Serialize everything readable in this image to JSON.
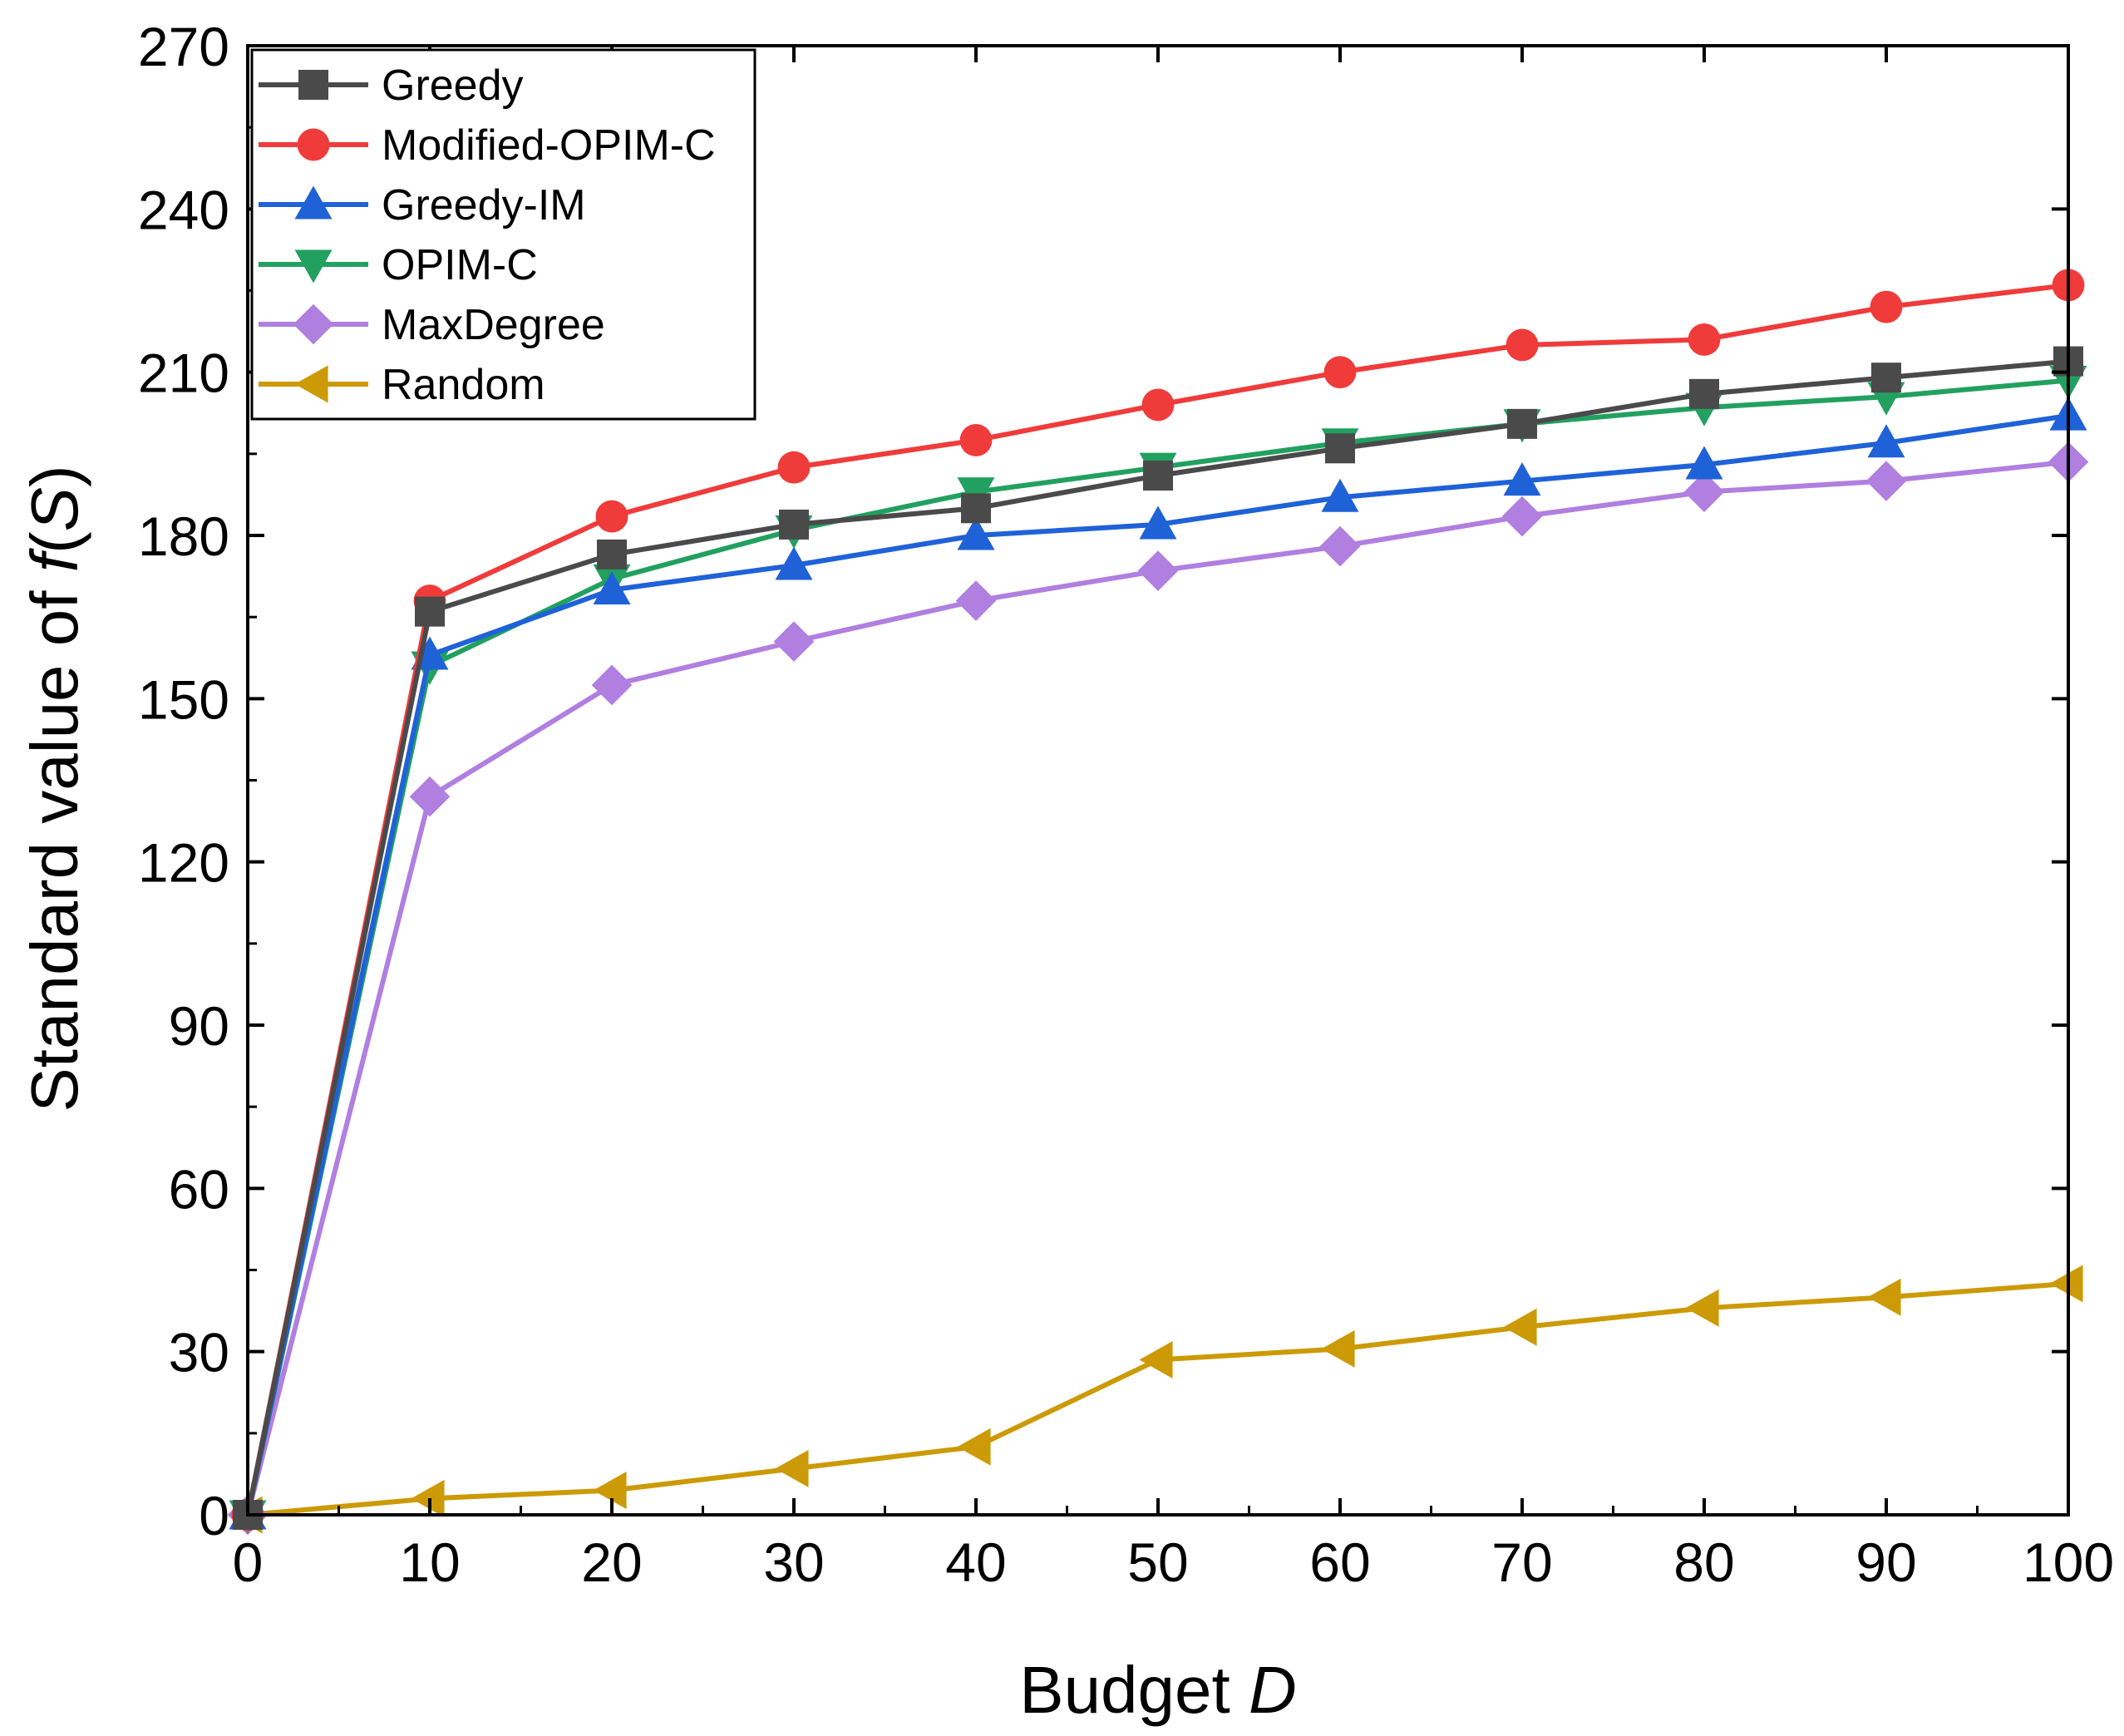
{
  "chart_data": {
    "type": "line",
    "title": "",
    "xlabel": "Budget",
    "xlabel_var": "D",
    "ylabel": "Standard value of",
    "ylabel_var": "f",
    "ylabel_paren_open": "(",
    "ylabel_arg": "S",
    "ylabel_paren_close": ")",
    "xlim": [
      0,
      100
    ],
    "ylim": [
      0,
      270
    ],
    "x_ticks": [
      "0",
      "10",
      "20",
      "30",
      "40",
      "50",
      "60",
      "70",
      "80",
      "90",
      "100"
    ],
    "y_ticks": [
      "0",
      "30",
      "60",
      "90",
      "120",
      "150",
      "180",
      "210",
      "240",
      "270"
    ],
    "grid": false,
    "legend_position": "top-left",
    "x": [
      0,
      10,
      20,
      30,
      40,
      50,
      60,
      70,
      80,
      90,
      100
    ],
    "series": [
      {
        "name": "Greedy",
        "color": "#4a4a4a",
        "marker": "square",
        "values": [
          0,
          166,
          176.5,
          182,
          185,
          191,
          196,
          200.5,
          206,
          209,
          212
        ]
      },
      {
        "name": "Modified-OPIM-C",
        "color": "#f03b3b",
        "marker": "circle",
        "values": [
          0,
          168,
          183.5,
          192.5,
          197.5,
          204,
          210,
          215,
          216,
          222,
          226
        ]
      },
      {
        "name": "Greedy-IM",
        "color": "#1f62d8",
        "marker": "triangle-up",
        "values": [
          0,
          158,
          170,
          174.5,
          180,
          182,
          187,
          190,
          193,
          197,
          202
        ]
      },
      {
        "name": "OPIM-C",
        "color": "#22a060",
        "marker": "triangle-down",
        "values": [
          0,
          156,
          172,
          181,
          188,
          192.5,
          197,
          200.5,
          203.5,
          205.5,
          208.5
        ]
      },
      {
        "name": "MaxDegree",
        "color": "#b07fe0",
        "marker": "diamond",
        "values": [
          0,
          132,
          152.5,
          160.5,
          168,
          173.5,
          178,
          183.5,
          188,
          190,
          193.5
        ]
      },
      {
        "name": "Random",
        "color": "#cc9a06",
        "marker": "triangle-left",
        "values": [
          0,
          3,
          4.5,
          8.5,
          12.5,
          28.5,
          30.5,
          34.5,
          38,
          40,
          42.5
        ]
      }
    ]
  }
}
